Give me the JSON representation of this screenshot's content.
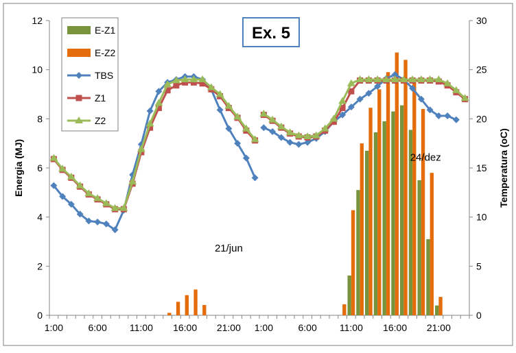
{
  "chart_data": {
    "type": "bar+line",
    "title_box": "Ex. 5",
    "ylabel_left": "Energia (MJ)",
    "ylabel_right": "Temperatura (oC)",
    "ylim_left": [
      0,
      12
    ],
    "ylim_right": [
      0,
      30
    ],
    "yticks_left": [
      "0",
      "2",
      "4",
      "6",
      "8",
      "10",
      "12"
    ],
    "yticks_right": [
      "0",
      "5",
      "10",
      "15",
      "20",
      "25",
      "30"
    ],
    "x_tick_labels": [
      {
        "i": 0,
        "label": "1:00"
      },
      {
        "i": 5,
        "label": "6:00"
      },
      {
        "i": 10,
        "label": "11:00"
      },
      {
        "i": 15,
        "label": "16:00"
      },
      {
        "i": 20,
        "label": "21:00"
      },
      {
        "i": 24,
        "label": "1:00"
      },
      {
        "i": 29,
        "label": "6:00"
      },
      {
        "i": 34,
        "label": "11:00"
      },
      {
        "i": 39,
        "label": "16:00"
      },
      {
        "i": 44,
        "label": "21:00"
      }
    ],
    "n_points": 48,
    "annotations": [
      {
        "text": "21/jun",
        "i": 20,
        "y_left": 2.6
      },
      {
        "text": "24/dez",
        "i": 42.5,
        "y_left": 6.3
      }
    ],
    "legend_position": "top-left",
    "grid": false,
    "series": [
      {
        "name": "E-Z1",
        "kind": "bar",
        "axis": "left",
        "color": "#77933c",
        "values": [
          0,
          0,
          0,
          0,
          0,
          0,
          0,
          0,
          0,
          0,
          0,
          0,
          0,
          0,
          0,
          0,
          0,
          0,
          0,
          0,
          0,
          0,
          0,
          0,
          0,
          0,
          0,
          0,
          0,
          0,
          0,
          0,
          0,
          0,
          1.62,
          5.1,
          6.7,
          7.45,
          7.9,
          8.3,
          8.55,
          7.55,
          5.5,
          3.1,
          0.4,
          0,
          0,
          0
        ]
      },
      {
        "name": "E-Z2",
        "kind": "bar",
        "axis": "left",
        "color": "#e46c0a",
        "values": [
          0,
          0,
          0,
          0,
          0,
          0,
          0,
          0,
          0,
          0,
          0,
          0,
          0,
          0.1,
          0.55,
          0.82,
          1.05,
          0.42,
          0,
          0,
          0,
          0,
          0,
          0,
          0,
          0,
          0,
          0,
          0,
          0,
          0,
          0,
          0,
          0.45,
          4.28,
          7.0,
          8.45,
          9.2,
          9.9,
          10.7,
          10.4,
          9.5,
          8.4,
          5.8,
          0.75,
          0,
          0,
          0
        ]
      },
      {
        "name": "TBS",
        "kind": "line",
        "axis": "right",
        "color": "#4f81bd",
        "marker": "diamond",
        "values": [
          13.2,
          12.1,
          11.3,
          10.3,
          9.6,
          9.5,
          9.3,
          8.7,
          10.7,
          14.3,
          17.4,
          20.8,
          22.8,
          23.7,
          24.0,
          24.3,
          24.3,
          24.0,
          23.0,
          20.9,
          19.0,
          17.5,
          16.0,
          14.0,
          19.1,
          18.7,
          18.1,
          17.6,
          17.4,
          17.6,
          18.0,
          18.7,
          19.7,
          20.4,
          21.2,
          22.0,
          22.6,
          23.3,
          24.1,
          24.5,
          24.0,
          23.1,
          22.0,
          20.9,
          20.3,
          20.3,
          19.9,
          null
        ]
      },
      {
        "name": "Z1",
        "kind": "line",
        "axis": "right",
        "color": "#c0504d",
        "marker": "square",
        "values": [
          15.9,
          14.8,
          14.0,
          13.1,
          12.3,
          11.8,
          11.3,
          10.8,
          10.8,
          13.4,
          16.6,
          19.1,
          21.1,
          22.9,
          23.4,
          23.7,
          23.7,
          23.6,
          23.0,
          22.3,
          21.1,
          20.1,
          18.8,
          17.8,
          20.4,
          19.8,
          19.1,
          18.5,
          18.2,
          18.1,
          18.2,
          18.8,
          19.7,
          21.1,
          22.8,
          23.9,
          23.9,
          23.9,
          23.9,
          23.9,
          23.9,
          23.9,
          23.9,
          23.9,
          23.8,
          23.4,
          22.7,
          22.0
        ]
      },
      {
        "name": "Z2",
        "kind": "line",
        "axis": "right",
        "color": "#9bbb59",
        "marker": "triangle",
        "values": [
          16.0,
          14.9,
          14.1,
          13.2,
          12.4,
          11.9,
          11.4,
          10.9,
          10.9,
          13.6,
          16.9,
          19.5,
          21.6,
          23.5,
          23.9,
          24.0,
          24.0,
          24.0,
          23.2,
          22.5,
          21.3,
          20.2,
          19.0,
          17.9,
          20.5,
          19.9,
          19.2,
          18.6,
          18.3,
          18.2,
          18.3,
          19.0,
          20.0,
          21.8,
          23.6,
          24.0,
          24.0,
          24.0,
          24.0,
          24.0,
          24.0,
          24.0,
          24.0,
          24.0,
          24.0,
          23.6,
          22.9,
          22.1
        ]
      }
    ]
  }
}
